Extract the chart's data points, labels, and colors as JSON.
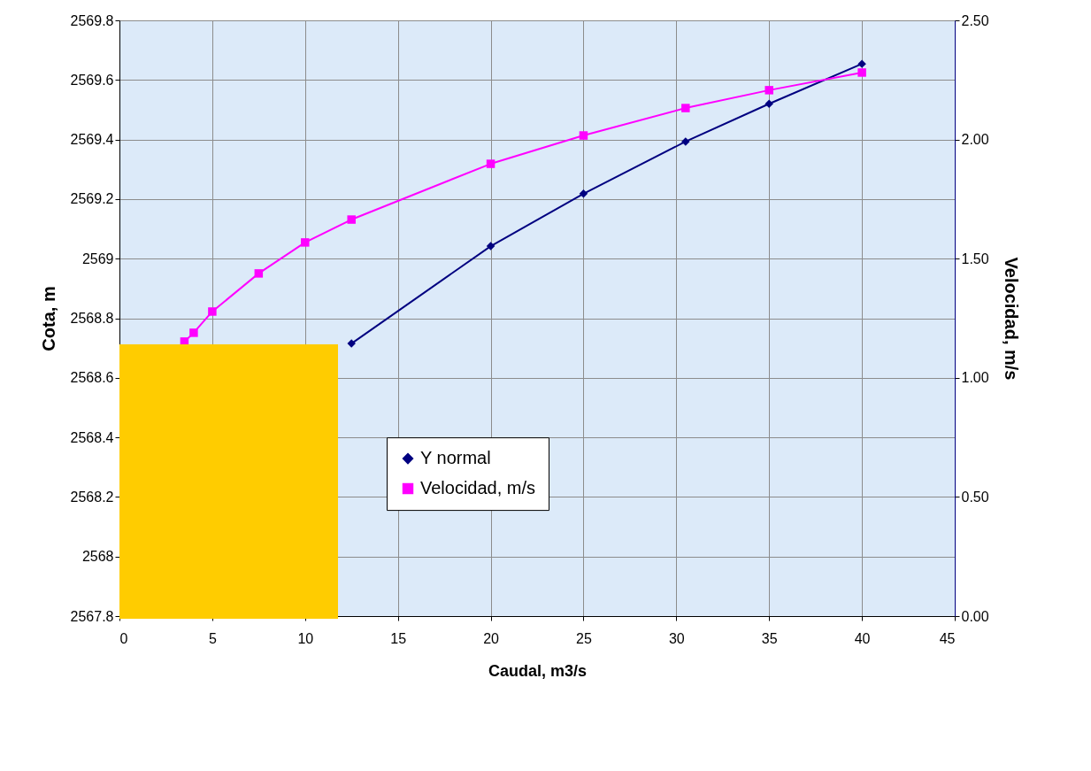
{
  "chart_data": {
    "type": "line",
    "xlabel": "Caudal, m3/s",
    "ylabel": "Cota, m",
    "y2label": "Velocidad, m/s",
    "x": [
      3.5,
      4,
      5,
      7.5,
      10,
      12.5,
      20,
      25,
      30.5,
      35,
      40
    ],
    "series": [
      {
        "name": "Y normal",
        "color": "#000080",
        "marker": "diamond",
        "values": [
          null,
          null,
          null,
          null,
          null,
          2568.715,
          2569.042,
          2569.218,
          2569.393,
          2569.52,
          2569.654
        ]
      },
      {
        "name": "Velocidad, m/s",
        "color": "#ff00ff",
        "marker": "square",
        "axis": "y2",
        "values": [
          1.152,
          1.189,
          1.278,
          1.438,
          1.568,
          1.664,
          1.898,
          2.017,
          2.132,
          2.207,
          2.281
        ]
      }
    ],
    "xlim": [
      0,
      45
    ],
    "xticks": [
      0,
      5,
      10,
      15,
      20,
      25,
      30,
      35,
      40,
      45
    ],
    "ylim": [
      2567.8,
      2569.8
    ],
    "yticks": [
      2567.8,
      2568,
      2568.2,
      2568.4,
      2568.6,
      2568.8,
      2569,
      2569.2,
      2569.4,
      2569.6,
      2569.8
    ],
    "y2lim": [
      0,
      2.5
    ],
    "y2ticks": [
      {
        "value": 0,
        "label": "0.00"
      },
      {
        "value": 0.5,
        "label": "0.50"
      },
      {
        "value": 1,
        "label": "1.00"
      },
      {
        "value": 1.5,
        "label": "1.50"
      },
      {
        "value": 2,
        "label": "2.00"
      },
      {
        "value": 2.5,
        "label": "2.50"
      }
    ],
    "grid": true,
    "legend": "bottom",
    "line_style": "solid"
  }
}
